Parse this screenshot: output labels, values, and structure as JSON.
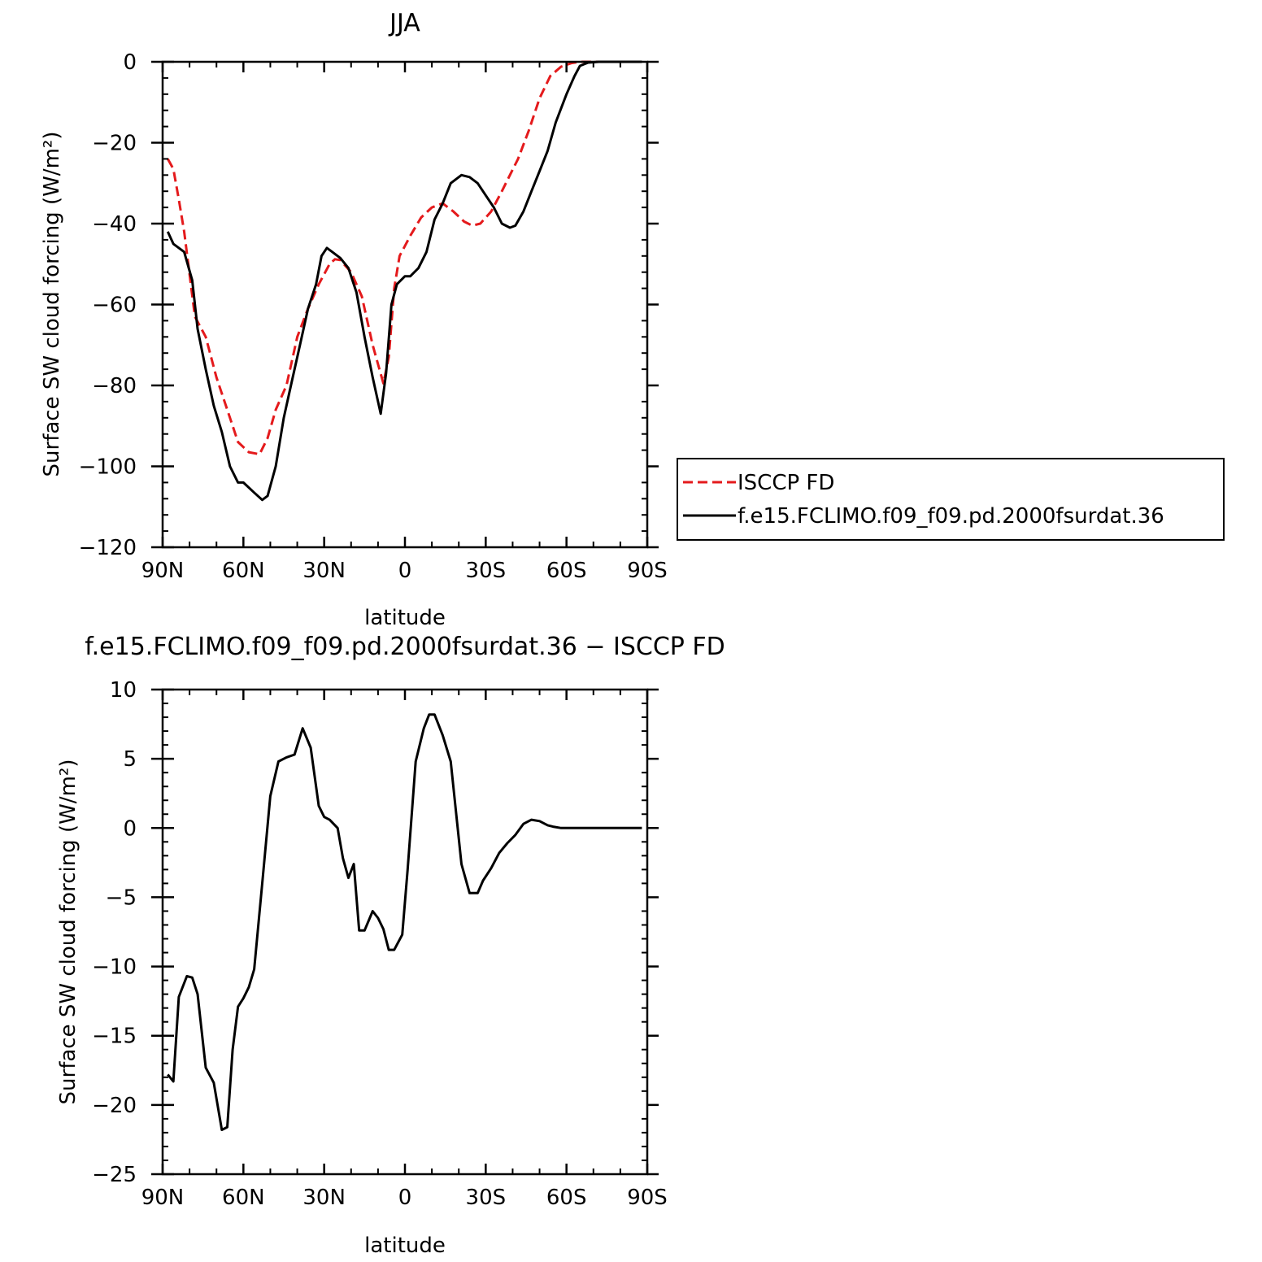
{
  "chart_data": [
    {
      "type": "line",
      "title": "JJA",
      "xlabel": "latitude",
      "ylabel": "Surface SW cloud forcing (W/m²)",
      "ylim": [
        -120,
        0
      ],
      "xlim": [
        90,
        -90
      ],
      "xticks": [
        90,
        60,
        30,
        0,
        -30,
        -60,
        -90
      ],
      "xtick_labels": [
        "90N",
        "60N",
        "30N",
        "0",
        "30S",
        "60S",
        "90S"
      ],
      "yticks": [
        0,
        -20,
        -40,
        -60,
        -80,
        -100,
        -120
      ],
      "ytick_labels": [
        "0",
        "−20",
        "−40",
        "−60",
        "−80",
        "−100",
        "−120"
      ],
      "legend_position": "right",
      "series": [
        {
          "name": "ISCCP FD",
          "color": "#e41a1c",
          "dash": "dashed",
          "x": [
            88.1,
            86,
            84,
            82,
            78,
            74,
            72,
            70,
            66,
            62,
            58,
            54,
            51,
            48,
            44,
            40,
            36,
            32,
            28,
            26,
            24,
            20,
            16,
            12,
            8,
            6,
            4,
            2,
            0,
            -2,
            -6,
            -10,
            -14,
            -18,
            -22,
            -25,
            -28,
            -32,
            -36,
            -39,
            -42,
            -46,
            -50,
            -54,
            -58,
            -62,
            -64,
            -66,
            -70,
            -74,
            -77.5
          ],
          "y": [
            -24,
            -26.5,
            -34,
            -42,
            -63,
            -68,
            -73,
            -78,
            -86,
            -94,
            -96.5,
            -97,
            -93,
            -86,
            -80,
            -68,
            -61,
            -55,
            -50,
            -48.8,
            -49,
            -52,
            -58,
            -70,
            -79.5,
            -73,
            -56,
            -48,
            -45.5,
            -43,
            -38.5,
            -36,
            -35,
            -37,
            -39.5,
            -40.5,
            -40,
            -37,
            -32,
            -28,
            -24,
            -17,
            -9,
            -3.5,
            -1.2,
            -0.3,
            -0.1,
            0,
            0,
            0,
            0
          ]
        },
        {
          "name": "f.e15.FCLIMO.f09_f09.pd.2000fsurdat.36",
          "color": "#000000",
          "dash": "solid",
          "x": [
            88.1,
            86,
            82,
            79,
            77,
            74,
            71,
            68,
            65,
            62,
            60,
            56,
            53,
            51,
            48,
            45,
            42,
            39,
            36,
            33,
            31,
            29,
            27,
            24,
            21,
            18,
            15,
            12,
            9,
            7,
            5,
            3,
            0,
            -2,
            -5,
            -8,
            -11,
            -14,
            -17,
            -21,
            -24,
            -27,
            -30,
            -33,
            -36,
            -39,
            -41,
            -44,
            -47,
            -50,
            -53,
            -56,
            -60,
            -63,
            -65,
            -68,
            -72,
            -76,
            -80,
            -84,
            -88
          ],
          "y": [
            -42,
            -45,
            -47,
            -54,
            -66,
            -76,
            -85,
            -91.5,
            -100,
            -104,
            -104,
            -106.5,
            -108.3,
            -107.3,
            -100,
            -88,
            -79,
            -70,
            -61,
            -55,
            -48,
            -46,
            -47,
            -48.5,
            -51,
            -57,
            -68,
            -78,
            -87,
            -77,
            -60,
            -55,
            -53,
            -53,
            -51,
            -47,
            -39,
            -35,
            -30,
            -28,
            -28.5,
            -30,
            -33,
            -36,
            -40,
            -41,
            -40.5,
            -37,
            -32,
            -27,
            -22,
            -15,
            -8,
            -3.5,
            -1,
            -0.2,
            0,
            0,
            0,
            0,
            0
          ]
        }
      ]
    },
    {
      "type": "line",
      "title": "f.e15.FCLIMO.f09_f09.pd.2000fsurdat.36 − ISCCP FD",
      "xlabel": "latitude",
      "ylabel": "Surface SW cloud forcing (W/m²)",
      "ylim": [
        -25,
        10
      ],
      "xlim": [
        90,
        -90
      ],
      "xticks": [
        90,
        60,
        30,
        0,
        -30,
        -60,
        -90
      ],
      "xtick_labels": [
        "90N",
        "60N",
        "30N",
        "0",
        "30S",
        "60S",
        "90S"
      ],
      "yticks": [
        10,
        5,
        0,
        -5,
        -10,
        -15,
        -20,
        -25
      ],
      "ytick_labels": [
        "10",
        "5",
        "0",
        "−5",
        "−10",
        "−15",
        "−20",
        "−25"
      ],
      "series": [
        {
          "name": "",
          "color": "#000000",
          "dash": "solid",
          "x": [
            88.1,
            86,
            84,
            81,
            79,
            77,
            74,
            71,
            68,
            66,
            64,
            62,
            60,
            58,
            56,
            53,
            50,
            47,
            44,
            41,
            38,
            35,
            32,
            30,
            28,
            25,
            23,
            21,
            19,
            17,
            15,
            12,
            10,
            8,
            6,
            4,
            1,
            -1,
            -4,
            -7,
            -9,
            -11,
            -14,
            -17,
            -21,
            -24,
            -27,
            -29,
            -32,
            -35,
            -38,
            -41,
            -44,
            -47,
            -50,
            -53,
            -55,
            -58,
            -61,
            -64,
            -67,
            -70,
            -73,
            -76,
            -80,
            -84,
            -88
          ],
          "y": [
            -17.8,
            -18.3,
            -12.2,
            -10.7,
            -10.8,
            -12,
            -17.3,
            -18.4,
            -21.8,
            -21.6,
            -16,
            -12.9,
            -12.3,
            -11.5,
            -10.2,
            -4,
            2.3,
            4.8,
            5.1,
            5.3,
            7.2,
            5.8,
            1.6,
            0.8,
            0.6,
            0,
            -2.2,
            -3.6,
            -2.6,
            -7.4,
            -7.4,
            -6,
            -6.5,
            -7.3,
            -8.8,
            -8.8,
            -7.7,
            -3,
            4.8,
            7.2,
            8.2,
            8.2,
            6.7,
            4.8,
            -2.6,
            -4.7,
            -4.7,
            -3.8,
            -2.9,
            -1.8,
            -1.1,
            -0.5,
            0.3,
            0.6,
            0.5,
            0.2,
            0.1,
            0,
            0,
            0,
            0,
            0,
            0,
            0,
            0,
            0,
            0
          ]
        }
      ]
    }
  ]
}
